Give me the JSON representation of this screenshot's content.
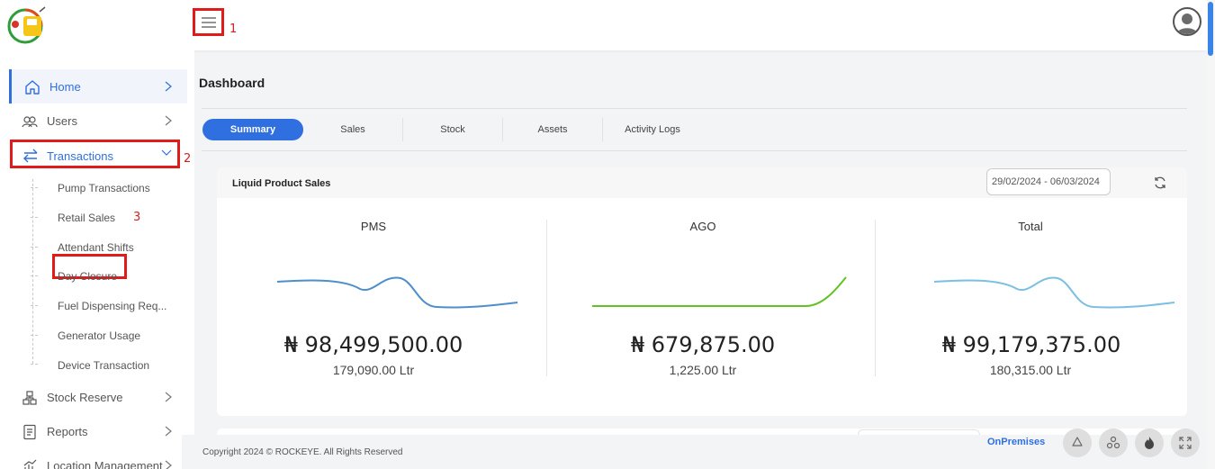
{
  "topbar": {
    "hamburger_marker": "1",
    "logo_icon": "fuel-pump-logo-icon",
    "avatar_icon": "user-avatar-icon"
  },
  "sidebar": {
    "items": [
      {
        "label": "Home",
        "icon": "home-icon"
      },
      {
        "label": "Users",
        "icon": "users-icon"
      },
      {
        "label": "Transactions",
        "icon": "transfer-arrows-icon",
        "marker": "2"
      },
      {
        "label": "Stock Reserve",
        "icon": "stock-reserve-icon"
      },
      {
        "label": "Reports",
        "icon": "report-icon"
      },
      {
        "label": "Location Management",
        "icon": "location-chart-icon"
      }
    ],
    "transactions_sub": [
      "Pump Transactions",
      "Retail Sales",
      "Attendant Shifts",
      "Day Closure",
      "Fuel Dispensing Req...",
      "Generator Usage",
      "Device Transaction"
    ],
    "retail_marker": "3"
  },
  "main": {
    "title": "Dashboard",
    "tabs": [
      {
        "label": "Summary",
        "active": true
      },
      {
        "label": "Sales"
      },
      {
        "label": "Stock"
      },
      {
        "label": "Assets"
      },
      {
        "label": "Activity Logs"
      }
    ]
  },
  "card": {
    "title": "Liquid Product Sales",
    "date_range": "29/02/2024 - 06/03/2024",
    "columns": [
      {
        "name": "PMS",
        "amount": "₦ 98,499,500.00",
        "qty": "179,090.00 Ltr",
        "line_color": "#3b82c4"
      },
      {
        "name": "AGO",
        "amount": "₦ 679,875.00",
        "qty": "1,225.00 Ltr",
        "line_color": "#62c225"
      },
      {
        "name": "Total",
        "amount": "₦ 99,179,375.00",
        "qty": "180,315.00 Ltr",
        "line_color": "#6db8e0"
      }
    ]
  },
  "footer": {
    "copyright": "Copyright 2024 © ROCKEYE. All Rights Reserved",
    "mode": "OnPremises",
    "fab_icons": [
      "recycle-icon",
      "cluster-icon",
      "fire-icon",
      "expand-icon"
    ]
  },
  "colors": {
    "accent": "#2f6fe0",
    "highlight_red": "#e01b1b"
  }
}
